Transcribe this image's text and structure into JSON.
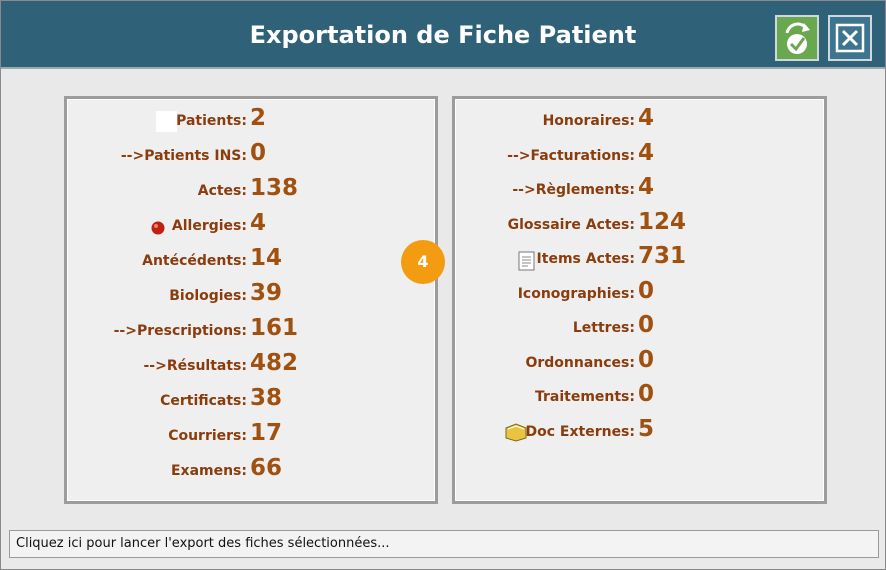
{
  "header": {
    "title": "Exportation de Fiche Patient"
  },
  "left_panel": {
    "rows": [
      {
        "label": "Patients:",
        "value": 2
      },
      {
        "label": "-->Patients INS:",
        "value": 0
      },
      {
        "label": "Actes:",
        "value": 138
      },
      {
        "label": "Allergies:",
        "value": 4
      },
      {
        "label": "Antécédents:",
        "value": 14
      },
      {
        "label": "Biologies:",
        "value": 39
      },
      {
        "label": "-->Prescriptions:",
        "value": 161
      },
      {
        "label": "-->Résultats:",
        "value": 482
      },
      {
        "label": "Certificats:",
        "value": 38
      },
      {
        "label": "Courriers:",
        "value": 17
      },
      {
        "label": "Examens:",
        "value": 66
      }
    ]
  },
  "right_panel": {
    "rows": [
      {
        "label": "Honoraires:",
        "value": 4
      },
      {
        "label": "-->Facturations:",
        "value": 4
      },
      {
        "label": "-->Règlements:",
        "value": 4
      },
      {
        "label": "Glossaire Actes:",
        "value": 124
      },
      {
        "label": "Items Actes:",
        "value": 731
      },
      {
        "label": "Iconographies:",
        "value": 0
      },
      {
        "label": "Lettres:",
        "value": 0
      },
      {
        "label": "Ordonnances:",
        "value": 0
      },
      {
        "label": "Traitements:",
        "value": 0
      },
      {
        "label": "Doc Externes:",
        "value": 5
      }
    ]
  },
  "badge": {
    "label": 4
  },
  "status_bar": {
    "text": "Cliquez ici pour lancer l'export des fiches sélectionnées..."
  }
}
